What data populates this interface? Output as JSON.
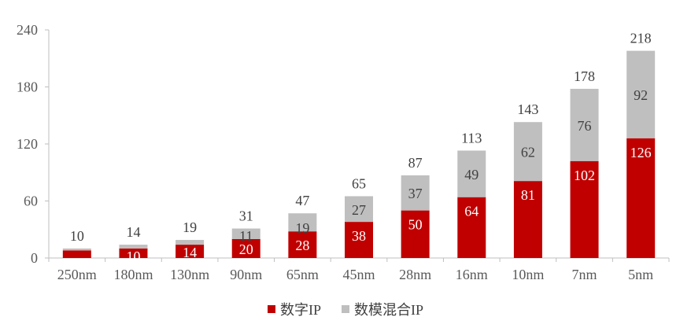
{
  "chart_data": {
    "type": "bar",
    "stacked": true,
    "categories": [
      "250nm",
      "180nm",
      "130nm",
      "90nm",
      "65nm",
      "45nm",
      "28nm",
      "16nm",
      "10nm",
      "7nm",
      "5nm"
    ],
    "series": [
      {
        "name": "数字IP",
        "color": "#c00000",
        "values": [
          8,
          10,
          14,
          20,
          28,
          38,
          50,
          64,
          81,
          102,
          126
        ],
        "labels": [
          "",
          "10",
          "14",
          "20",
          "28",
          "38",
          "50",
          "64",
          "81",
          "102",
          "126"
        ]
      },
      {
        "name": "数模混合IP",
        "color": "#bfbfbf",
        "values": [
          2,
          4,
          5,
          11,
          19,
          27,
          37,
          49,
          62,
          76,
          92
        ],
        "labels": [
          "",
          "",
          "",
          "11",
          "19",
          "27",
          "37",
          "49",
          "62",
          "76",
          "92"
        ]
      }
    ],
    "totals": [
      "10",
      "14",
      "19",
      "31",
      "47",
      "65",
      "87",
      "113",
      "143",
      "178",
      "218"
    ],
    "yticks": [
      "0",
      "60",
      "120",
      "180",
      "240"
    ],
    "ylim": [
      0,
      240
    ],
    "title": "",
    "xlabel": "",
    "ylabel": "",
    "legend_position": "bottom",
    "grid": false
  }
}
